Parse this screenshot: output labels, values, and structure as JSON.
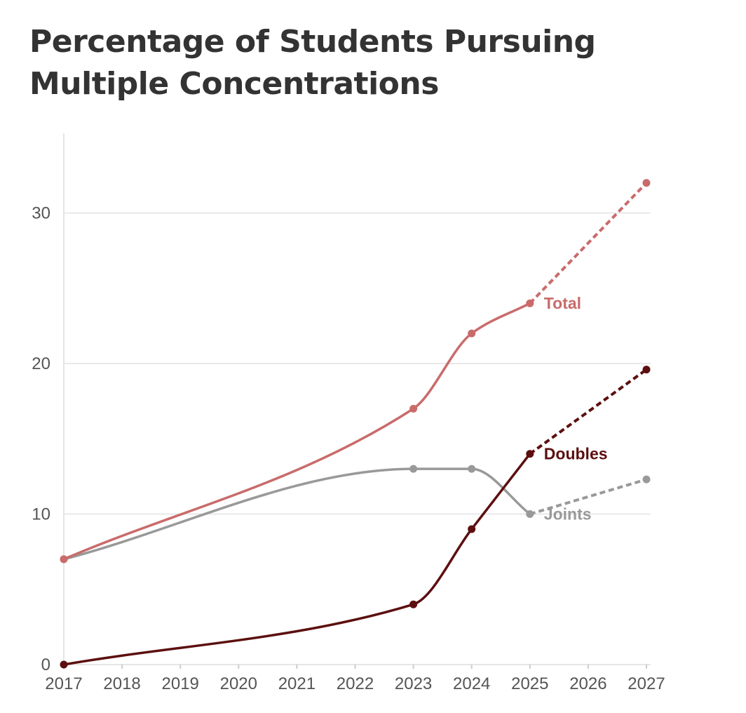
{
  "chart_data": {
    "type": "line",
    "title": "Percentage of Students Pursuing Multiple Concentrations",
    "xlabel": "",
    "ylabel": "",
    "xlim": [
      2017,
      2027
    ],
    "ylim": [
      0,
      35
    ],
    "x_ticks": [
      2017,
      2018,
      2019,
      2020,
      2021,
      2022,
      2023,
      2024,
      2025,
      2026,
      2027
    ],
    "y_ticks": [
      0,
      10,
      20,
      30
    ],
    "grid": "horizontal",
    "legend": "direct labels at end of solid lines",
    "series": [
      {
        "name": "Total",
        "color": "#c96b6b",
        "points": [
          {
            "x": 2017,
            "y": 7
          },
          {
            "x": 2023,
            "y": 17
          },
          {
            "x": 2024,
            "y": 22
          },
          {
            "x": 2025,
            "y": 24
          }
        ],
        "projection": [
          {
            "x": 2025,
            "y": 24
          },
          {
            "x": 2027,
            "y": 32
          }
        ]
      },
      {
        "name": "Doubles",
        "color": "#5c0f0f",
        "points": [
          {
            "x": 2017,
            "y": 0
          },
          {
            "x": 2023,
            "y": 4
          },
          {
            "x": 2024,
            "y": 9
          },
          {
            "x": 2025,
            "y": 14
          }
        ],
        "projection": [
          {
            "x": 2025,
            "y": 14
          },
          {
            "x": 2027,
            "y": 19.6
          }
        ]
      },
      {
        "name": "Joints",
        "color": "#999999",
        "points": [
          {
            "x": 2017,
            "y": 7
          },
          {
            "x": 2023,
            "y": 13
          },
          {
            "x": 2024,
            "y": 13
          },
          {
            "x": 2025,
            "y": 10
          }
        ],
        "projection": [
          {
            "x": 2025,
            "y": 10
          },
          {
            "x": 2027,
            "y": 12.3
          }
        ]
      }
    ]
  }
}
